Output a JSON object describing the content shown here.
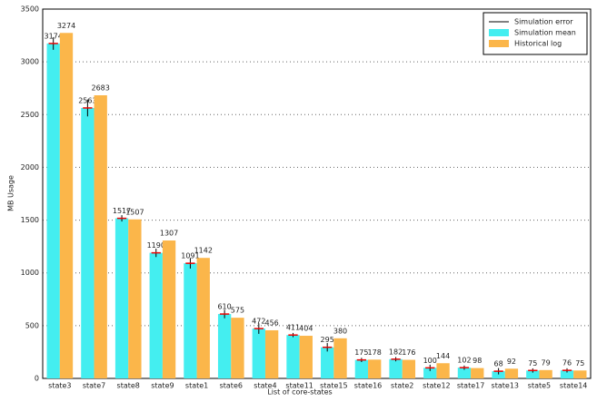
{
  "chart_data": {
    "type": "bar",
    "x_label": "List of core-states",
    "y_label": "MB Usage",
    "categories": [
      "state3",
      "state7",
      "state8",
      "state9",
      "state1",
      "state6",
      "state4",
      "state11",
      "state15",
      "state16",
      "state2",
      "state12",
      "state17",
      "state13",
      "state5",
      "state14"
    ],
    "series": [
      {
        "name": "Simulation mean",
        "color": "#44eef0",
        "values": [
          3174,
          2563,
          1517,
          1190,
          1091,
          610,
          472,
          411,
          295,
          175,
          182,
          100,
          102,
          68,
          75,
          76
        ],
        "errors": [
          60,
          80,
          30,
          40,
          50,
          40,
          50,
          20,
          40,
          20,
          20,
          30,
          20,
          30,
          20,
          20
        ]
      },
      {
        "name": "Historical log",
        "color": "#fbb64a",
        "values": [
          3274,
          2683,
          1507,
          1307,
          1142,
          575,
          456,
          404,
          380,
          178,
          176,
          144,
          98,
          92,
          79,
          75
        ]
      }
    ],
    "error_name": "Simulation error",
    "ylim": [
      0,
      3500
    ],
    "yticks": [
      0,
      500,
      1000,
      1500,
      2000,
      2500,
      3000,
      3500
    ],
    "grid": true,
    "legend": "top-right"
  }
}
